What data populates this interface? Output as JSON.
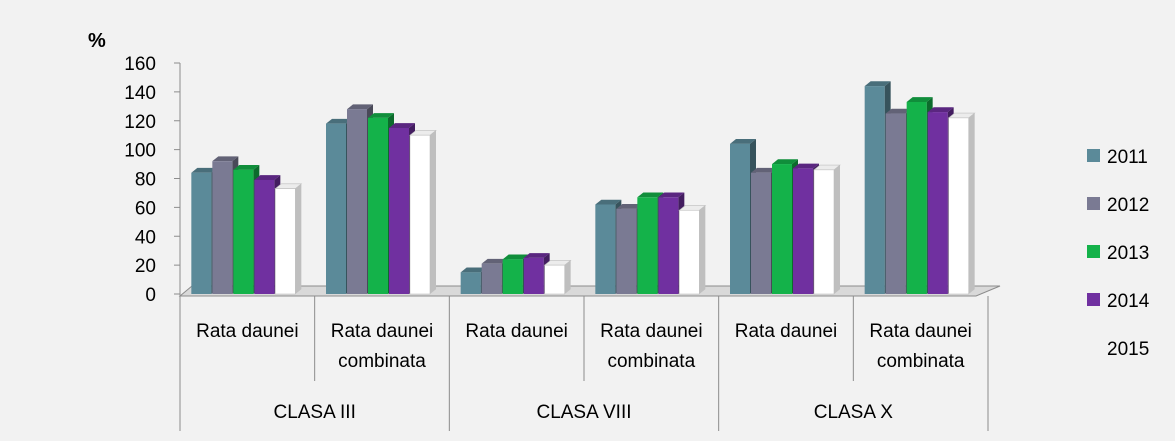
{
  "chart_data": {
    "type": "bar",
    "style": "3d-clustered-column",
    "yaxis_unit": "%",
    "ylim": [
      0,
      160
    ],
    "yticks": [
      0,
      20,
      40,
      60,
      80,
      100,
      120,
      140,
      160
    ],
    "groups": [
      {
        "label": "CLASA III",
        "categories": [
          [
            "Rata daunei"
          ],
          [
            "Rata daunei",
            "combinata"
          ]
        ]
      },
      {
        "label": "CLASA VIII",
        "categories": [
          [
            "Rata daunei"
          ],
          [
            "Rata daunei",
            "combinata"
          ]
        ]
      },
      {
        "label": "CLASA X",
        "categories": [
          [
            "Rata daunei"
          ],
          [
            "Rata daunei",
            "combinata"
          ]
        ]
      }
    ],
    "series": [
      {
        "name": "2011",
        "color": "#5b8a99",
        "values": [
          84,
          118,
          15,
          62,
          104,
          144
        ]
      },
      {
        "name": "2012",
        "color": "#7a7a93",
        "values": [
          92,
          128,
          21,
          59,
          84,
          125
        ]
      },
      {
        "name": "2013",
        "color": "#14b24a",
        "values": [
          86,
          122,
          24,
          67,
          90,
          133
        ]
      },
      {
        "name": "2014",
        "color": "#7030a0",
        "values": [
          79,
          115,
          25,
          67,
          87,
          126
        ]
      },
      {
        "name": "2015",
        "color": "#ffffff",
        "values": [
          73,
          110,
          20,
          58,
          86,
          122
        ]
      }
    ],
    "legend_position": "right",
    "grid": false
  }
}
